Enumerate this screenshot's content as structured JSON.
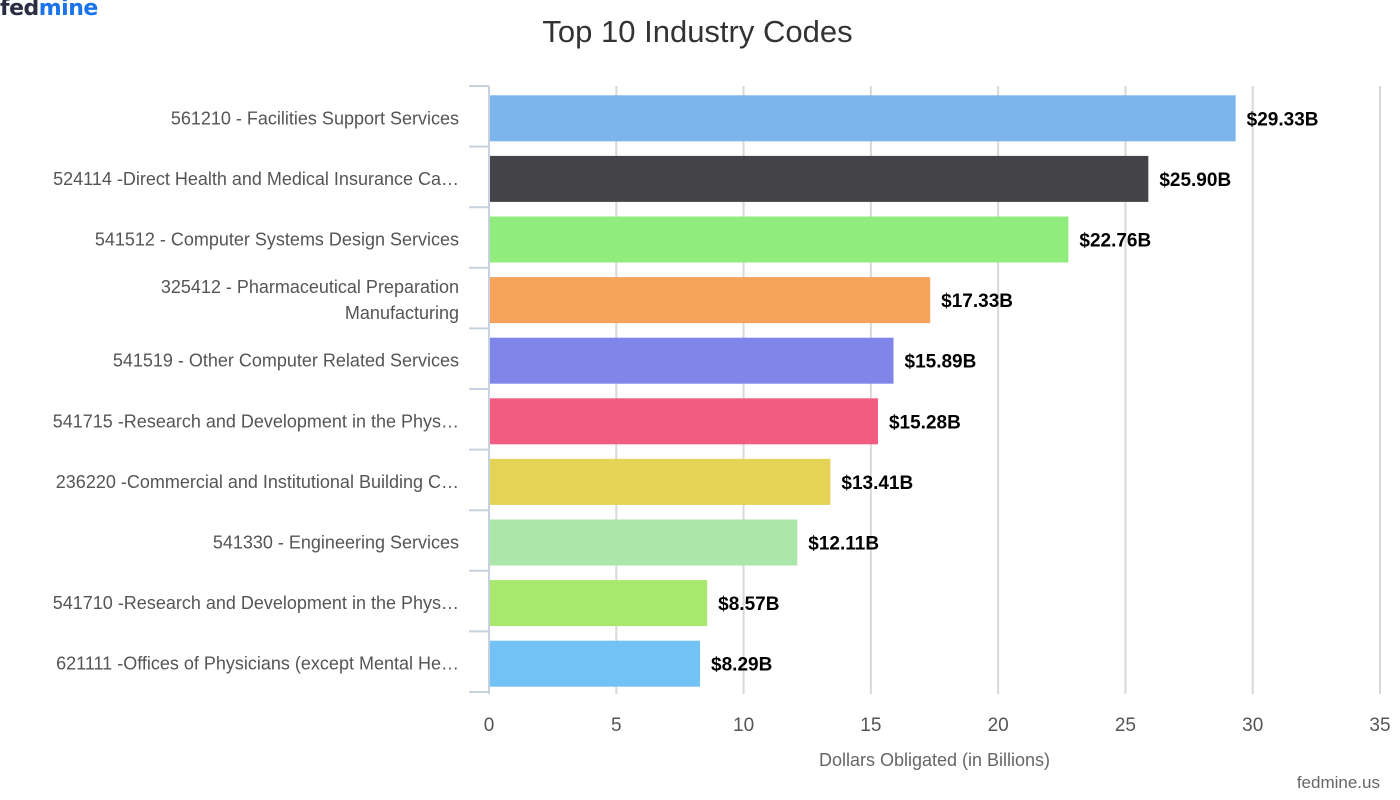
{
  "logo": {
    "part1": "fed",
    "part2": "mine"
  },
  "credit": "fedmine.us",
  "chart_data": {
    "type": "bar",
    "orientation": "horizontal",
    "title": "Top 10 Industry Codes",
    "xlabel": "Dollars Obligated (in Billions)",
    "ylabel": "",
    "xlim": [
      0,
      35
    ],
    "xticks": [
      0,
      5,
      10,
      15,
      20,
      25,
      30,
      35
    ],
    "grid": true,
    "categories": [
      [
        "561210 - Facilities Support Services"
      ],
      [
        "524114 -Direct Health and Medical Insurance Ca…"
      ],
      [
        "541512 - Computer Systems Design Services"
      ],
      [
        "325412 - Pharmaceutical Preparation",
        "Manufacturing"
      ],
      [
        "541519 - Other Computer Related Services"
      ],
      [
        "541715 -Research and Development in the Phys…"
      ],
      [
        "236220 -Commercial and Institutional Building C…"
      ],
      [
        "541330 - Engineering Services"
      ],
      [
        "541710 -Research and Development in the Phys…"
      ],
      [
        "621111 -Offices of Physicians (except Mental He…"
      ]
    ],
    "values": [
      29.33,
      25.9,
      22.76,
      17.33,
      15.89,
      15.28,
      13.41,
      12.11,
      8.57,
      8.29
    ],
    "data_labels": [
      "$29.33B",
      "$25.90B",
      "$22.76B",
      "$17.33B",
      "$15.89B",
      "$15.28B",
      "$13.41B",
      "$12.11B",
      "$8.57B",
      "$8.29B"
    ],
    "colors": [
      "#7cb5ec",
      "#434348",
      "#90ed7d",
      "#f7a35c",
      "#8085e9",
      "#f15c80",
      "#e4d354",
      "#abe7a9",
      "#a9e86e",
      "#73c2f6"
    ]
  }
}
